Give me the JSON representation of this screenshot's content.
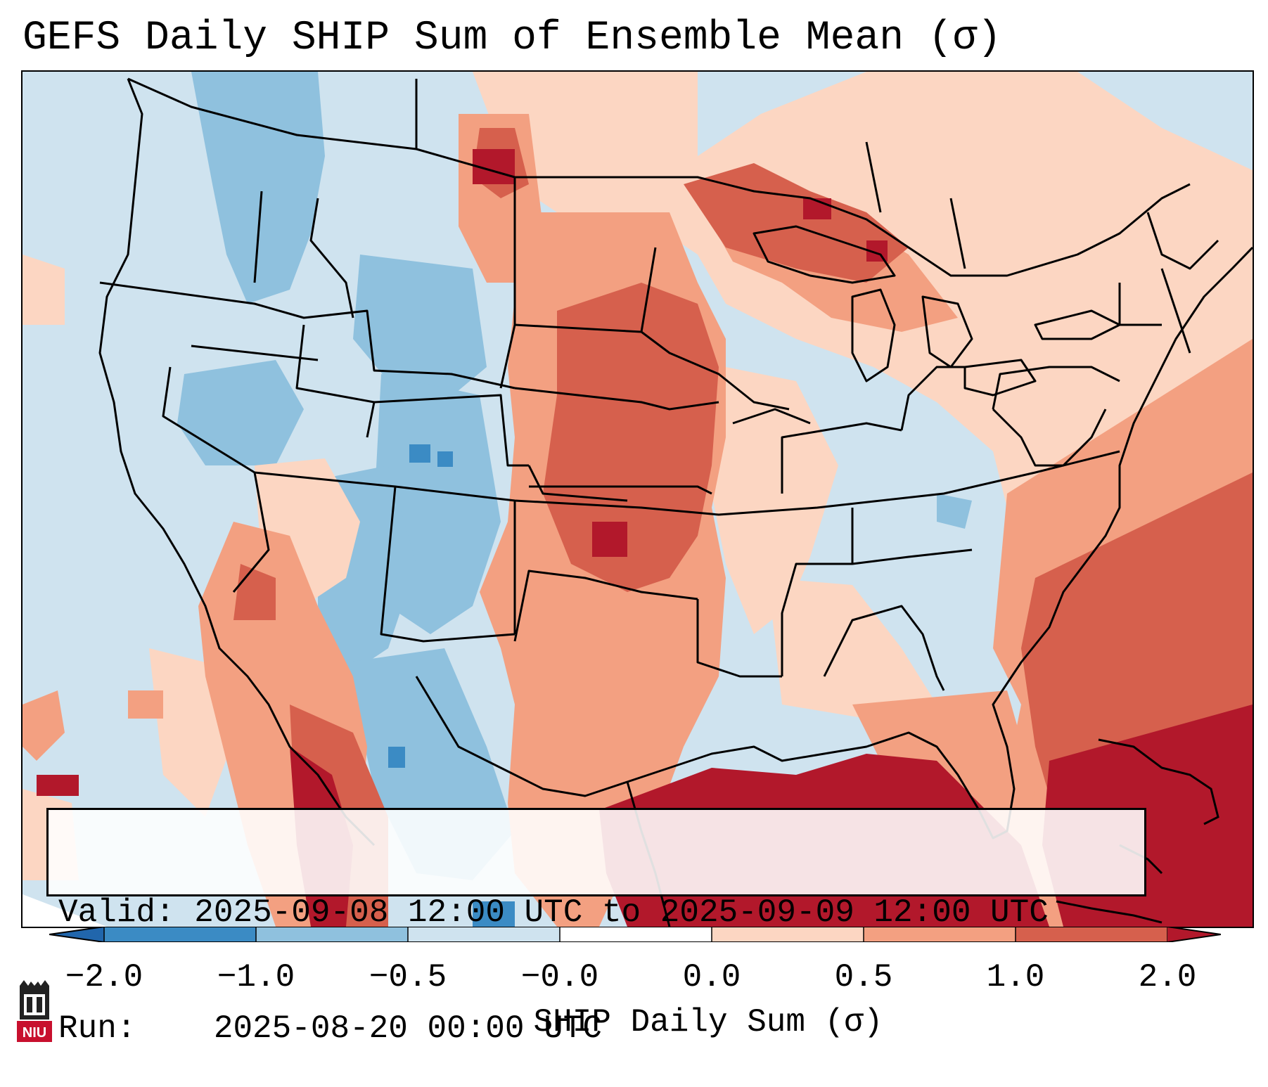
{
  "title": "GEFS Daily SHIP Sum of Ensemble Mean (σ)",
  "info": {
    "valid_label": "Valid:",
    "valid_value": "2025-09-08 12:00 UTC to 2025-09-09 12:00 UTC",
    "run_label": "Run:",
    "run_value": "2025-08-20 00:00 UTC"
  },
  "colorbar": {
    "label": "SHIP Daily Sum (σ)",
    "ticks": [
      "−2.0",
      "−1.0",
      "−0.5",
      "−0.0",
      "0.0",
      "0.5",
      "1.0",
      "2.0"
    ],
    "colors": [
      "#3b8bc4",
      "#8fc1de",
      "#cfe3ef",
      "#ffffff",
      "#fcd6c2",
      "#f3a081",
      "#d6604d",
      "#b2182b"
    ],
    "extend_low_color": "#2166ac",
    "extend_high_color": "#b2182b"
  },
  "map": {
    "land_color": "#cfe3ef",
    "boundary_color": "#000000"
  },
  "logo": {
    "text": "NIU",
    "color": "#c8102e"
  }
}
